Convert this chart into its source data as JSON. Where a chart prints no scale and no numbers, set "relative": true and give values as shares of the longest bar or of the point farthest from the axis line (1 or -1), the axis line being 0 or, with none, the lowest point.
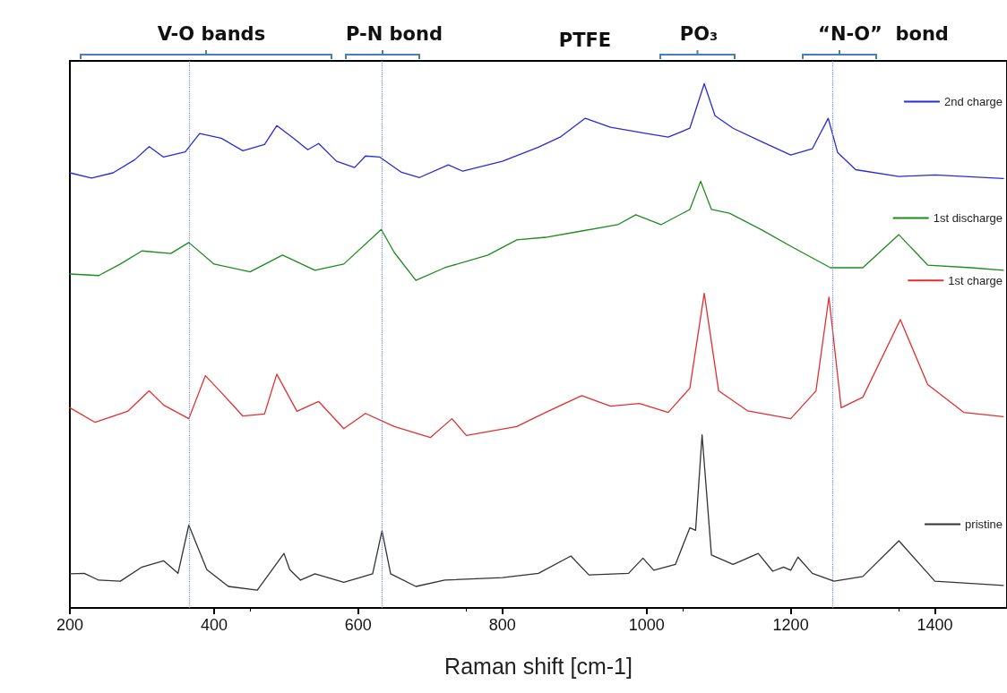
{
  "chart_data": {
    "type": "line",
    "xlabel": "Raman shift [cm-1]",
    "relative": true,
    "xlim": [
      200,
      1500
    ],
    "xticks": [
      200,
      400,
      600,
      800,
      1000,
      1200,
      1400
    ],
    "grid": false,
    "legend": "right",
    "series": [
      {
        "name": "2nd charge",
        "color": "#2a2ad8",
        "x": [
          200,
          230,
          260,
          290,
          310,
          330,
          360,
          380,
          410,
          440,
          470,
          487,
          510,
          530,
          545,
          570,
          595,
          610,
          630,
          660,
          685,
          725,
          745,
          800,
          850,
          880,
          915,
          950,
          1000,
          1030,
          1060,
          1080,
          1095,
          1120,
          1160,
          1200,
          1230,
          1252,
          1265,
          1290,
          1350,
          1400,
          1495
        ],
        "values": [
          0.83,
          0.82,
          0.83,
          0.855,
          0.88,
          0.86,
          0.87,
          0.905,
          0.896,
          0.872,
          0.884,
          0.92,
          0.896,
          0.874,
          0.886,
          0.852,
          0.84,
          0.862,
          0.86,
          0.831,
          0.821,
          0.845,
          0.833,
          0.852,
          0.879,
          0.898,
          0.934,
          0.917,
          0.905,
          0.898,
          0.915,
          1.0,
          0.939,
          0.915,
          0.889,
          0.864,
          0.876,
          0.934,
          0.869,
          0.836,
          0.823,
          0.826,
          0.819
        ]
      },
      {
        "name": "1st discharge",
        "color": "#1e8a1e",
        "x": [
          200,
          240,
          270,
          300,
          340,
          365,
          400,
          450,
          495,
          540,
          580,
          632,
          650,
          680,
          720,
          780,
          820,
          860,
          910,
          960,
          985,
          1020,
          1060,
          1075,
          1090,
          1115,
          1160,
          1200,
          1255,
          1300,
          1350,
          1390,
          1450,
          1495
        ],
        "values": [
          0.637,
          0.634,
          0.656,
          0.681,
          0.676,
          0.697,
          0.656,
          0.641,
          0.673,
          0.644,
          0.656,
          0.722,
          0.678,
          0.625,
          0.649,
          0.673,
          0.702,
          0.707,
          0.719,
          0.731,
          0.75,
          0.731,
          0.76,
          0.814,
          0.76,
          0.753,
          0.721,
          0.69,
          0.649,
          0.649,
          0.712,
          0.654,
          0.649,
          0.644
        ]
      },
      {
        "name": "1st charge",
        "color": "#e03030",
        "x": [
          200,
          235,
          280,
          310,
          330,
          365,
          388,
          410,
          440,
          470,
          487,
          515,
          545,
          580,
          610,
          650,
          700,
          730,
          750,
          820,
          860,
          910,
          950,
          990,
          1030,
          1060,
          1080,
          1100,
          1140,
          1200,
          1235,
          1253,
          1270,
          1300,
          1352,
          1390,
          1440,
          1495
        ],
        "values": [
          0.382,
          0.354,
          0.375,
          0.414,
          0.387,
          0.361,
          0.443,
          0.411,
          0.366,
          0.37,
          0.446,
          0.375,
          0.394,
          0.342,
          0.371,
          0.346,
          0.325,
          0.361,
          0.329,
          0.346,
          0.373,
          0.405,
          0.385,
          0.39,
          0.373,
          0.419,
          0.6,
          0.414,
          0.376,
          0.361,
          0.414,
          0.593,
          0.382,
          0.402,
          0.55,
          0.426,
          0.373,
          0.365
        ]
      },
      {
        "name": "pristine",
        "color": "#333333",
        "x": [
          200,
          220,
          240,
          270,
          300,
          330,
          350,
          365,
          390,
          420,
          460,
          497,
          505,
          520,
          540,
          580,
          620,
          633,
          645,
          680,
          720,
          800,
          850,
          895,
          920,
          975,
          995,
          1010,
          1040,
          1060,
          1068,
          1077,
          1090,
          1120,
          1155,
          1175,
          1190,
          1200,
          1210,
          1230,
          1260,
          1300,
          1350,
          1400,
          1495
        ],
        "values": [
          0.065,
          0.066,
          0.053,
          0.051,
          0.078,
          0.09,
          0.066,
          0.158,
          0.073,
          0.041,
          0.034,
          0.104,
          0.073,
          0.053,
          0.065,
          0.049,
          0.065,
          0.147,
          0.065,
          0.041,
          0.053,
          0.058,
          0.066,
          0.099,
          0.063,
          0.066,
          0.095,
          0.072,
          0.083,
          0.153,
          0.148,
          0.33,
          0.101,
          0.083,
          0.104,
          0.07,
          0.078,
          0.072,
          0.097,
          0.066,
          0.051,
          0.06,
          0.128,
          0.051,
          0.043
        ]
      }
    ],
    "ref_lines": [
      {
        "axis": "x",
        "value": 365,
        "color": "#6f8fd8",
        "line_style": "dotted"
      },
      {
        "axis": "x",
        "value": 633,
        "color": "#6f8fd8",
        "line_style": "dotted"
      },
      {
        "axis": "x",
        "value": 1258,
        "color": "#6f8fd8",
        "line_style": "dotted"
      }
    ],
    "annotations": [
      "V-O bands",
      "P-N bond",
      "PTFE",
      "PO₃",
      "“N-O”  bond"
    ]
  }
}
